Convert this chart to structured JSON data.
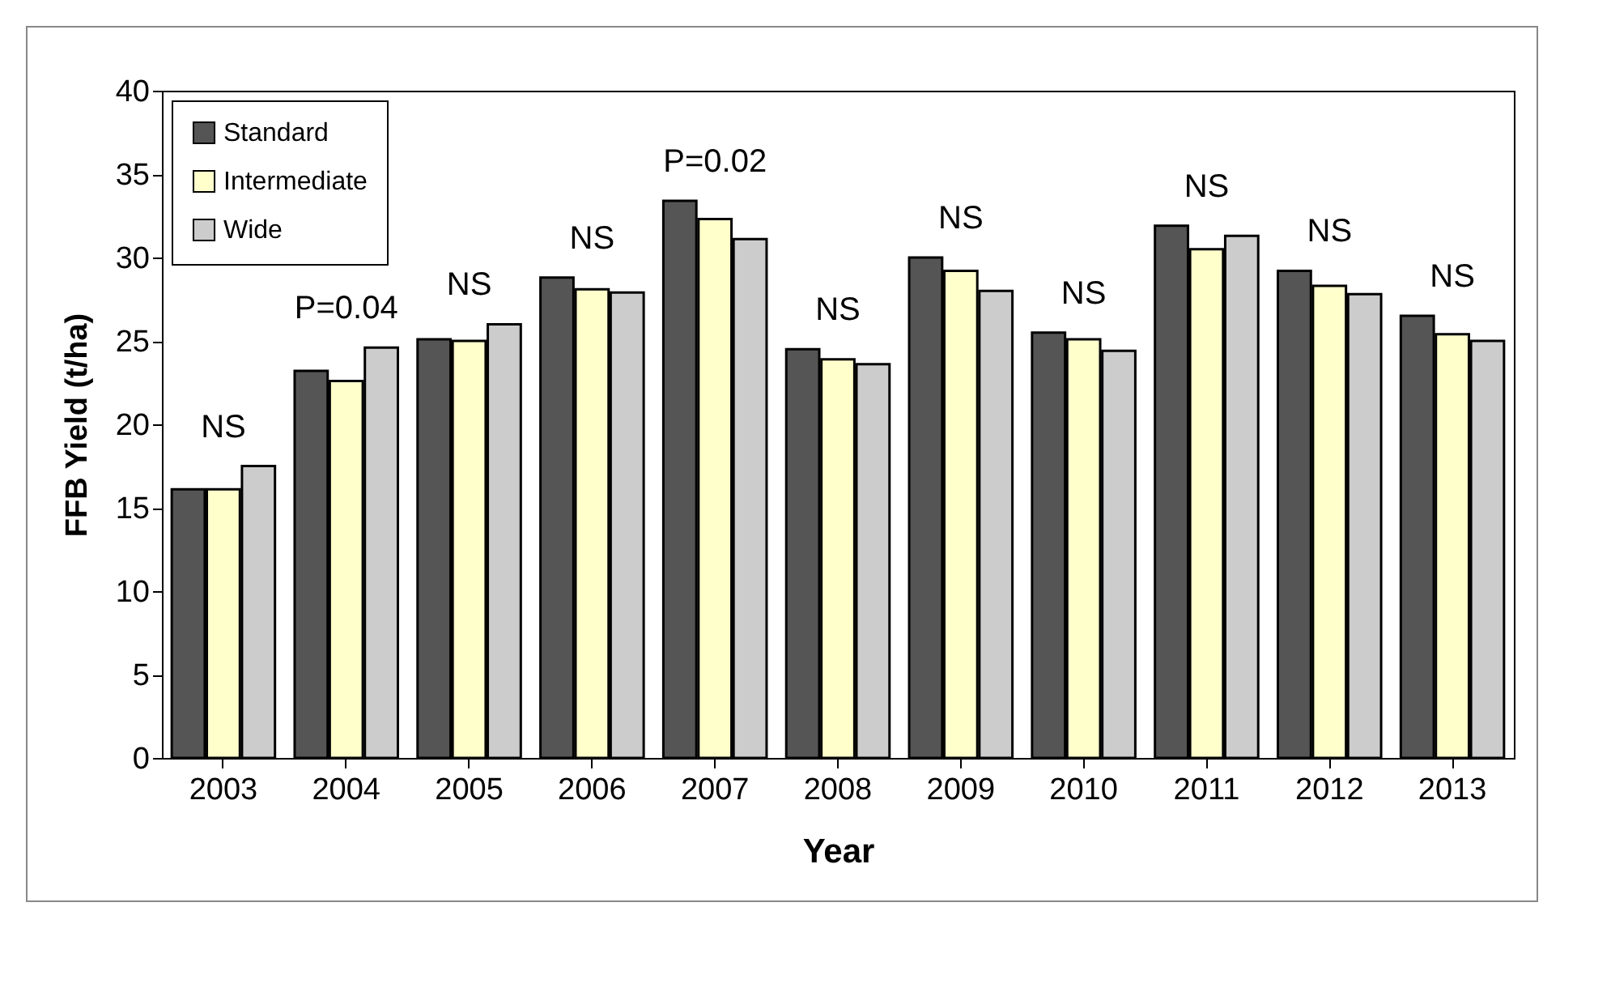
{
  "chart_data": {
    "type": "bar",
    "xlabel": "Year",
    "ylabel": "FFB Yield (t/ha)",
    "categories": [
      "2003",
      "2004",
      "2005",
      "2006",
      "2007",
      "2008",
      "2009",
      "2010",
      "2011",
      "2012",
      "2013"
    ],
    "series": [
      {
        "name": "Standard",
        "color": "#555555",
        "values": [
          16.1,
          23.2,
          25.1,
          28.8,
          33.4,
          24.5,
          30.0,
          25.5,
          31.9,
          29.2,
          26.5
        ]
      },
      {
        "name": "Intermediate",
        "color": "#ffffcc",
        "values": [
          16.1,
          22.6,
          25.0,
          28.1,
          32.3,
          23.9,
          29.2,
          25.1,
          30.5,
          28.3,
          25.4
        ]
      },
      {
        "name": "Wide",
        "color": "#cccccc",
        "values": [
          17.5,
          24.6,
          26.0,
          27.9,
          31.1,
          23.6,
          28.0,
          24.4,
          31.3,
          27.8,
          25.0
        ]
      }
    ],
    "annotations": [
      "NS",
      "P=0.04",
      "NS",
      "NS",
      "P=0.02",
      "NS",
      "NS",
      "NS",
      "NS",
      "NS",
      "NS"
    ],
    "ylim": [
      0,
      40
    ],
    "yticks": [
      0,
      5,
      10,
      15,
      20,
      25,
      30,
      35,
      40
    ],
    "grid": false,
    "legend": "top left"
  }
}
